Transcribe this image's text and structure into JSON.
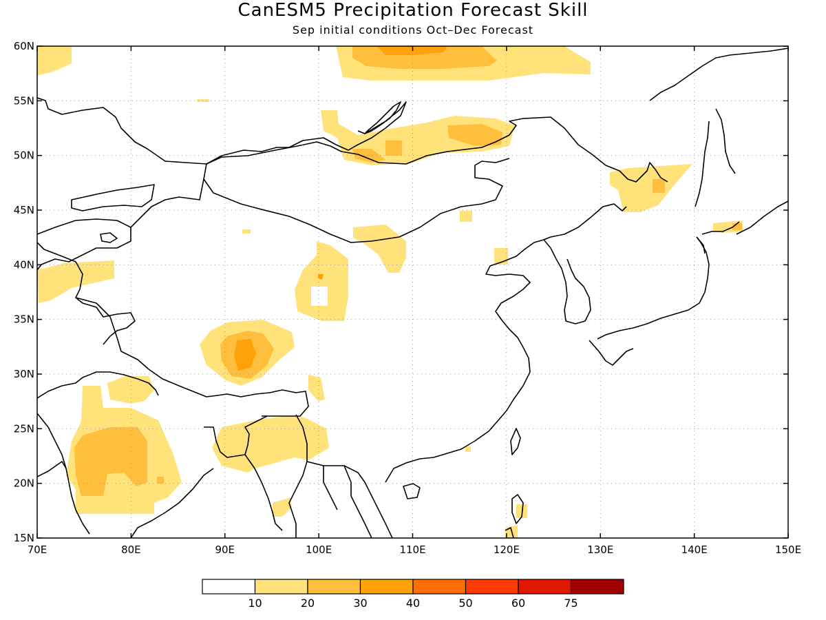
{
  "title": "CanESM5 Precipitation Forecast Skill",
  "subtitle": "Sep initial conditions  Oct–Dec Forecast",
  "map": {
    "lon_range": [
      70,
      150
    ],
    "lat_range": [
      15,
      60
    ],
    "lon_ticks": [
      "70E",
      "80E",
      "90E",
      "100E",
      "110E",
      "120E",
      "130E",
      "140E",
      "150E"
    ],
    "lat_ticks": [
      "60N",
      "55N",
      "50N",
      "45N",
      "40N",
      "35N",
      "30N",
      "25N",
      "20N",
      "15N"
    ],
    "grid": true
  },
  "colorbar": {
    "labels": [
      "10",
      "20",
      "30",
      "40",
      "50",
      "60",
      "75"
    ],
    "colors": [
      "#ffffff",
      "#ffe27a",
      "#ffbe3c",
      "#ffa20a",
      "#ff6e00",
      "#ff3a00",
      "#e01800",
      "#a00000"
    ]
  }
}
